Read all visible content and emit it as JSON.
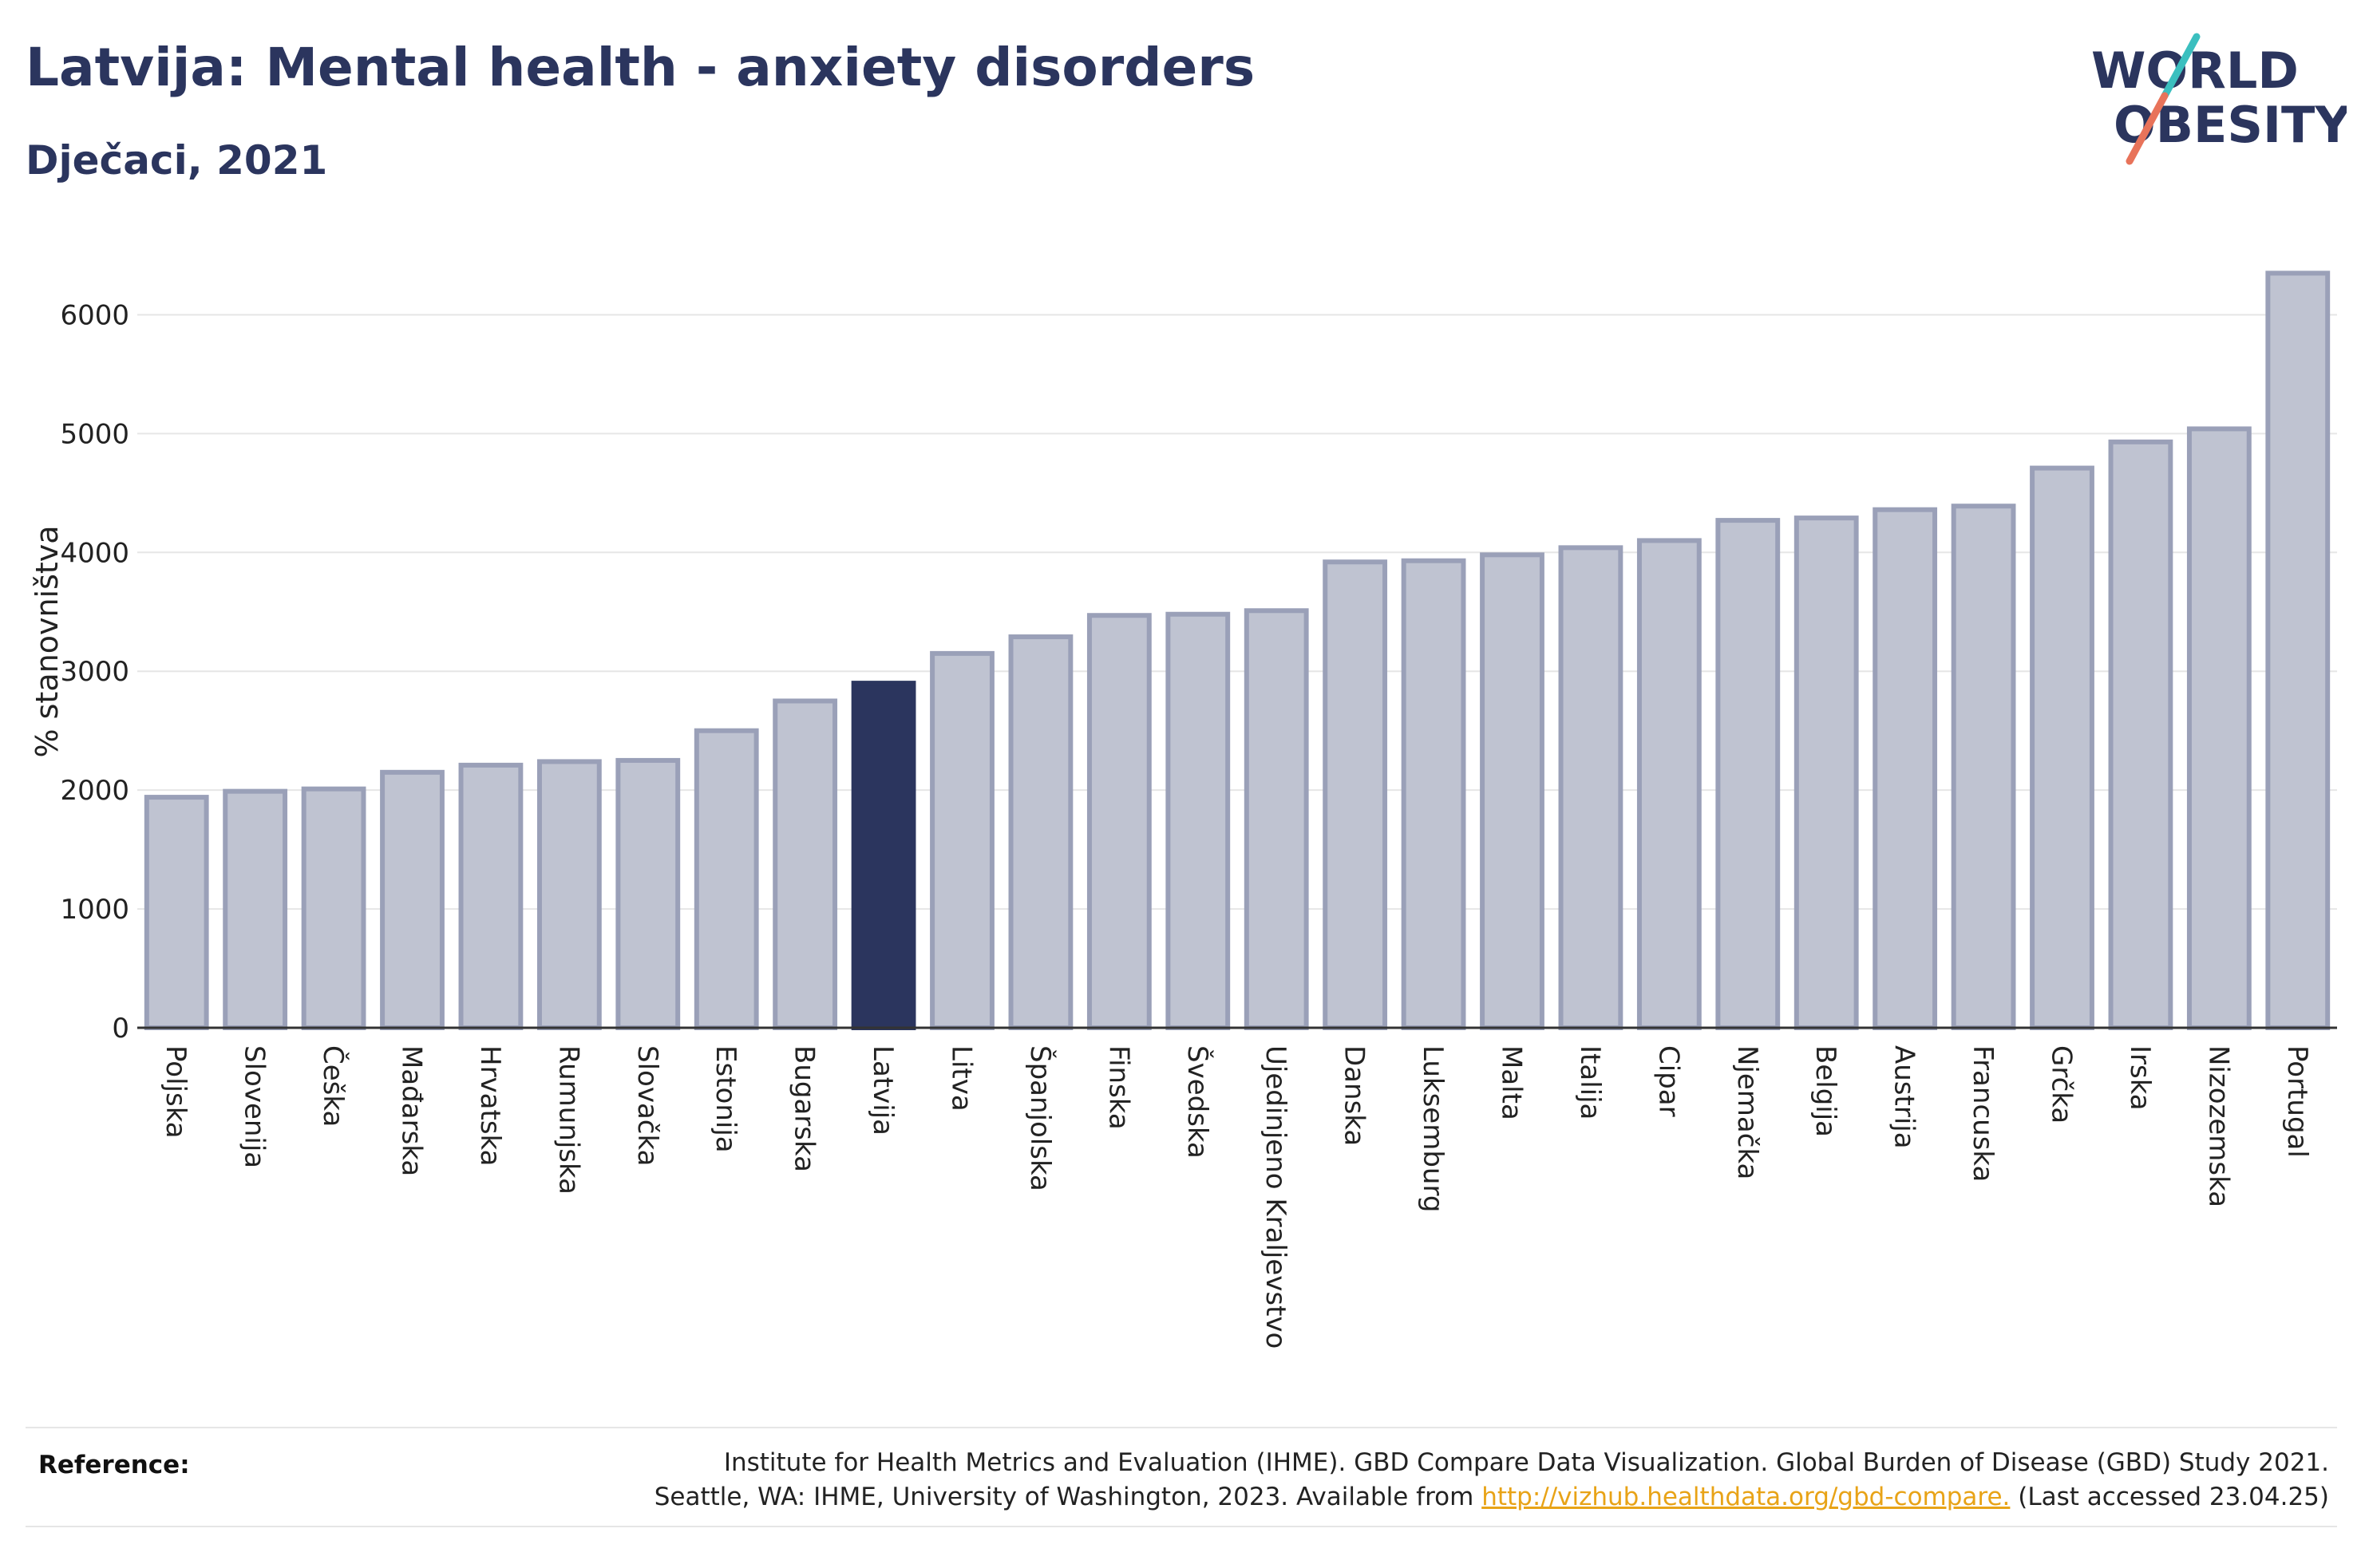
{
  "header": {
    "title": "Latvija: Mental health - anxiety disorders",
    "subtitle": "Dječaci, 2021"
  },
  "logo": {
    "line1": "WORLD",
    "line2": "OBESITY",
    "colors": {
      "text": "#2b355e",
      "slash_teal": "#3bbfbf",
      "slash_red": "#e8735a"
    }
  },
  "reference": {
    "label": "Reference:",
    "line1": "Institute for Health Metrics and Evaluation (IHME). GBD Compare Data Visualization. Global Burden of Disease (GBD) Study 2021.",
    "line2_prefix": "Seattle, WA: IHME, University of Washington, 2023. Available from ",
    "link_text": "http://vizhub.healthdata.org/gbd-compare.",
    "line2_suffix": " (Last accessed 23.04.25)"
  },
  "chart_data": {
    "type": "bar",
    "ylabel": "% stanovništva",
    "xlabel": "",
    "ylim": [
      0,
      6500
    ],
    "yticks": [
      0,
      1000,
      2000,
      3000,
      4000,
      5000,
      6000
    ],
    "grid": true,
    "highlight": "Latvija",
    "colors": {
      "bar": "#bfc3d1",
      "bar_stroke": "#9aa0b8",
      "highlight": "#2b355e",
      "grid": "#e6e6e6",
      "axis": "#333333"
    },
    "categories": [
      "Poljska",
      "Slovenija",
      "Češka",
      "Mađarska",
      "Hrvatska",
      "Rumunjska",
      "Slovačka",
      "Estonija",
      "Bugarska",
      "Latvija",
      "Litva",
      "Španjolska",
      "Finska",
      "Švedska",
      "Ujedinjeno Kraljevstvo",
      "Danska",
      "Luksemburg",
      "Malta",
      "Italija",
      "Cipar",
      "Njemačka",
      "Belgija",
      "Austrija",
      "Francuska",
      "Grčka",
      "Irska",
      "Nizozemska",
      "Portugal"
    ],
    "values": [
      1940,
      1990,
      2010,
      2150,
      2210,
      2240,
      2250,
      2500,
      2750,
      2900,
      3150,
      3290,
      3470,
      3480,
      3510,
      3920,
      3930,
      3980,
      4040,
      4100,
      4270,
      4290,
      4360,
      4390,
      4710,
      4930,
      5040,
      6350
    ]
  }
}
